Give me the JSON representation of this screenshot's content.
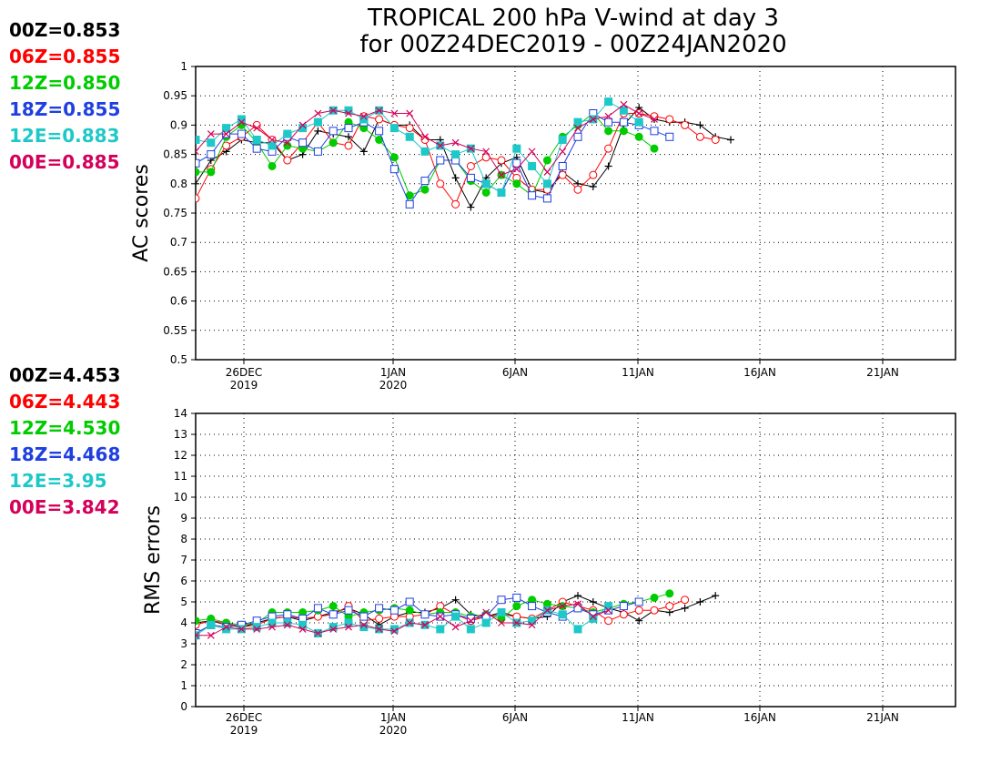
{
  "title_line1": "TROPICAL 200 hPa V-wind at day 3",
  "title_line2": "for 00Z24DEC2019 - 00Z24JAN2020",
  "colors": {
    "00Z": "#000000",
    "06Z": "#ff0000",
    "12Z": "#00cc00",
    "18Z": "#1f3fe0",
    "12E": "#1fc8c8",
    "00E": "#d4005a"
  },
  "chart_data": [
    {
      "type": "line",
      "ylabel": "AC scores",
      "ylim": [
        0.5,
        1
      ],
      "yticks": [
        "1",
        "0.95",
        "0.9",
        "0.85",
        "0.8",
        "0.75",
        "0.7",
        "0.65",
        "0.6",
        "0.55",
        "0.5"
      ],
      "xticks": [
        {
          "label": "26DEC",
          "sub": "2019"
        },
        {
          "label": "1JAN",
          "sub": "2020"
        },
        {
          "label": "6JAN",
          "sub": ""
        },
        {
          "label": "11JAN",
          "sub": ""
        },
        {
          "label": "16JAN",
          "sub": ""
        },
        {
          "label": "21JAN",
          "sub": ""
        }
      ],
      "x_start": "24DEC2019",
      "x_end": "24JAN2020",
      "legend": [
        {
          "text": "00Z=0.853",
          "key": "00Z"
        },
        {
          "text": "06Z=0.855",
          "key": "06Z"
        },
        {
          "text": "12Z=0.850",
          "key": "12Z"
        },
        {
          "text": "18Z=0.855",
          "key": "18Z"
        },
        {
          "text": "12E=0.883",
          "key": "12E"
        },
        {
          "text": "00E=0.885",
          "key": "00E"
        }
      ],
      "series": [
        {
          "name": "00Z",
          "marker": "plus",
          "values": [
            0.8,
            0.84,
            0.855,
            0.875,
            0.87,
            0.87,
            0.84,
            0.85,
            0.89,
            0.885,
            0.88,
            0.855,
            0.91,
            0.9,
            0.9,
            0.875,
            0.875,
            0.81,
            0.76,
            0.81,
            0.835,
            0.845,
            0.79,
            0.785,
            0.82,
            0.8,
            0.795,
            0.83,
            0.9,
            0.93,
            0.91,
            0.905,
            0.905,
            0.9,
            0.88,
            0.875
          ]
        },
        {
          "name": "06Z",
          "marker": "circle",
          "values": [
            0.775,
            0.825,
            0.865,
            0.88,
            0.9,
            0.875,
            0.84,
            0.87,
            0.905,
            0.87,
            0.865,
            0.915,
            0.91,
            0.9,
            0.895,
            0.875,
            0.8,
            0.765,
            0.83,
            0.845,
            0.84,
            0.81,
            0.79,
            0.79,
            0.815,
            0.79,
            0.815,
            0.86,
            0.92,
            0.92,
            0.915,
            0.91,
            0.9,
            0.88,
            0.875
          ]
        },
        {
          "name": "12Z",
          "marker": "dot",
          "values": [
            0.82,
            0.82,
            0.88,
            0.9,
            0.87,
            0.83,
            0.865,
            0.86,
            0.855,
            0.87,
            0.905,
            0.895,
            0.875,
            0.845,
            0.78,
            0.79,
            0.84,
            0.84,
            0.805,
            0.785,
            0.815,
            0.8,
            0.78,
            0.84,
            0.88,
            0.9,
            0.92,
            0.89,
            0.89,
            0.88,
            0.86
          ]
        },
        {
          "name": "18Z",
          "marker": "square",
          "values": [
            0.835,
            0.85,
            0.885,
            0.885,
            0.86,
            0.855,
            0.88,
            0.87,
            0.855,
            0.89,
            0.895,
            0.905,
            0.89,
            0.825,
            0.765,
            0.805,
            0.84,
            0.84,
            0.81,
            0.8,
            0.785,
            0.835,
            0.78,
            0.775,
            0.83,
            0.88,
            0.92,
            0.905,
            0.905,
            0.9,
            0.89,
            0.88
          ]
        },
        {
          "name": "12E",
          "marker": "fsquare",
          "values": [
            0.875,
            0.87,
            0.895,
            0.91,
            0.875,
            0.865,
            0.885,
            0.895,
            0.905,
            0.925,
            0.925,
            0.91,
            0.925,
            0.895,
            0.88,
            0.855,
            0.865,
            0.85,
            0.86,
            0.8,
            0.785,
            0.86,
            0.83,
            0.8,
            0.875,
            0.905,
            0.91,
            0.94,
            0.925,
            0.905
          ]
        },
        {
          "name": "00E",
          "marker": "cross",
          "values": [
            0.855,
            0.885,
            0.885,
            0.905,
            0.895,
            0.875,
            0.87,
            0.9,
            0.92,
            0.925,
            0.92,
            0.915,
            0.925,
            0.92,
            0.92,
            0.88,
            0.865,
            0.87,
            0.86,
            0.855,
            0.815,
            0.825,
            0.855,
            0.82,
            0.855,
            0.895,
            0.91,
            0.915,
            0.935,
            0.92,
            0.91
          ]
        }
      ]
    },
    {
      "type": "line",
      "ylabel": "RMS errors",
      "ylim": [
        0,
        14
      ],
      "yticks": [
        "14",
        "13",
        "12",
        "11",
        "10",
        "9",
        "8",
        "7",
        "6",
        "5",
        "4",
        "3",
        "2",
        "1",
        "0"
      ],
      "xticks": [
        {
          "label": "26DEC",
          "sub": "2019"
        },
        {
          "label": "1JAN",
          "sub": "2020"
        },
        {
          "label": "6JAN",
          "sub": ""
        },
        {
          "label": "11JAN",
          "sub": ""
        },
        {
          "label": "16JAN",
          "sub": ""
        },
        {
          "label": "21JAN",
          "sub": ""
        }
      ],
      "legend": [
        {
          "text": "00Z=4.453",
          "key": "00Z"
        },
        {
          "text": "06Z=4.443",
          "key": "06Z"
        },
        {
          "text": "12Z=4.530",
          "key": "12Z"
        },
        {
          "text": "18Z=4.468",
          "key": "18Z"
        },
        {
          "text": "12E=3.95",
          "key": "12E"
        },
        {
          "text": "00E=3.842",
          "key": "00E"
        }
      ],
      "series": [
        {
          "name": "00Z",
          "marker": "plus",
          "values": [
            4.0,
            4.1,
            3.9,
            3.8,
            4.0,
            4.2,
            4.3,
            4.1,
            4.3,
            4.5,
            4.7,
            4.4,
            3.9,
            4.3,
            4.5,
            4.5,
            4.7,
            5.1,
            4.4,
            4.3,
            4.5,
            4.3,
            4.2,
            4.3,
            5.0,
            5.3,
            5.0,
            4.7,
            4.5,
            4.1,
            4.6,
            4.5,
            4.7,
            5.0,
            5.3
          ]
        },
        {
          "name": "06Z",
          "marker": "circle",
          "values": [
            3.9,
            4.1,
            4.0,
            3.8,
            3.9,
            4.2,
            4.3,
            4.2,
            4.3,
            4.4,
            4.8,
            4.1,
            4.2,
            4.3,
            4.3,
            4.4,
            4.8,
            4.4,
            4.1,
            4.3,
            4.4,
            4.3,
            4.2,
            4.6,
            5.0,
            4.8,
            4.6,
            4.1,
            4.4,
            4.6,
            4.6,
            4.8,
            5.1
          ]
        },
        {
          "name": "12Z",
          "marker": "dot",
          "values": [
            4.1,
            4.2,
            4.0,
            3.9,
            4.0,
            4.5,
            4.5,
            4.5,
            4.6,
            4.8,
            4.3,
            4.5,
            4.6,
            4.7,
            4.6,
            4.4,
            4.5,
            4.5,
            4.3,
            4.4,
            4.2,
            4.8,
            5.1,
            4.9,
            4.8,
            4.7,
            4.5,
            4.7,
            4.9,
            5.0,
            5.2,
            5.4
          ]
        },
        {
          "name": "18Z",
          "marker": "square",
          "values": [
            3.5,
            3.9,
            3.8,
            3.9,
            4.1,
            4.3,
            4.4,
            4.2,
            4.7,
            4.4,
            4.6,
            4.3,
            4.7,
            4.6,
            5.0,
            4.4,
            4.3,
            4.4,
            4.2,
            4.3,
            5.1,
            5.2,
            4.8,
            4.5,
            4.3,
            4.7,
            4.4,
            4.6,
            4.8,
            5.0
          ]
        },
        {
          "name": "12E",
          "marker": "fsquare",
          "values": [
            3.4,
            3.9,
            3.7,
            3.7,
            3.8,
            4.0,
            4.0,
            3.9,
            3.5,
            3.8,
            4.0,
            3.8,
            3.7,
            3.7,
            4.0,
            3.9,
            3.7,
            4.3,
            3.7,
            4.0,
            4.5,
            4.0,
            4.1,
            4.6,
            4.4,
            3.7,
            4.2,
            4.8
          ]
        },
        {
          "name": "00E",
          "marker": "cross",
          "values": [
            3.4,
            3.4,
            3.8,
            3.7,
            3.7,
            3.8,
            3.9,
            3.7,
            3.5,
            3.7,
            3.8,
            3.9,
            3.7,
            3.6,
            4.0,
            3.9,
            4.3,
            3.8,
            4.1,
            4.5,
            4.0,
            4.0,
            3.9,
            4.6,
            4.8,
            4.9,
            4.3,
            4.6
          ]
        }
      ]
    }
  ]
}
